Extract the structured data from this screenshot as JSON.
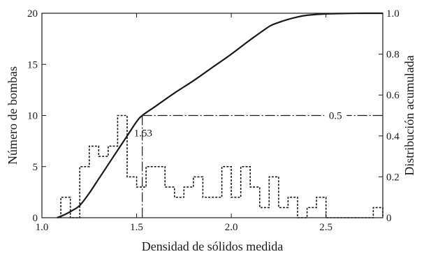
{
  "chart_data": {
    "type": "line",
    "xlabel": "Densidad de sólidos medida",
    "ylabel": "Número de bombas",
    "y2label": "Distribución acumulada",
    "xlim": [
      1.0,
      2.8
    ],
    "ylim": [
      0,
      20
    ],
    "y2lim": [
      0,
      1.0
    ],
    "grid": false,
    "x_ticks": [
      {
        "value": 1.0,
        "label": "1.0"
      },
      {
        "value": 1.5,
        "label": "1.5"
      },
      {
        "value": 2.0,
        "label": "2.0"
      },
      {
        "value": 2.5,
        "label": "2.5"
      }
    ],
    "y_ticks": [
      {
        "value": 0,
        "label": "0"
      },
      {
        "value": 5,
        "label": "5"
      },
      {
        "value": 10,
        "label": "10"
      },
      {
        "value": 15,
        "label": "15"
      },
      {
        "value": 20,
        "label": "20"
      }
    ],
    "y2_ticks": [
      {
        "value": 0,
        "label": "0"
      },
      {
        "value": 0.2,
        "label": "0.2"
      },
      {
        "value": 0.4,
        "label": "0.4"
      },
      {
        "value": 0.6,
        "label": "0.6"
      },
      {
        "value": 0.8,
        "label": "0.8"
      },
      {
        "value": 1.0,
        "label": "1.0"
      }
    ],
    "histogram": {
      "bin_width": 0.05,
      "bins": [
        {
          "x0": 1.1,
          "count": 2
        },
        {
          "x0": 1.15,
          "count": 0
        },
        {
          "x0": 1.2,
          "count": 5
        },
        {
          "x0": 1.25,
          "count": 7
        },
        {
          "x0": 1.3,
          "count": 6
        },
        {
          "x0": 1.35,
          "count": 7
        },
        {
          "x0": 1.4,
          "count": 10
        },
        {
          "x0": 1.45,
          "count": 4
        },
        {
          "x0": 1.5,
          "count": 3
        },
        {
          "x0": 1.55,
          "count": 5
        },
        {
          "x0": 1.6,
          "count": 5
        },
        {
          "x0": 1.65,
          "count": 3
        },
        {
          "x0": 1.7,
          "count": 2
        },
        {
          "x0": 1.75,
          "count": 3
        },
        {
          "x0": 1.8,
          "count": 4
        },
        {
          "x0": 1.85,
          "count": 2
        },
        {
          "x0": 1.9,
          "count": 2
        },
        {
          "x0": 1.95,
          "count": 5
        },
        {
          "x0": 2.0,
          "count": 2
        },
        {
          "x0": 2.05,
          "count": 5
        },
        {
          "x0": 2.1,
          "count": 3
        },
        {
          "x0": 2.15,
          "count": 1
        },
        {
          "x0": 2.2,
          "count": 4
        },
        {
          "x0": 2.25,
          "count": 1
        },
        {
          "x0": 2.3,
          "count": 2
        },
        {
          "x0": 2.35,
          "count": 0
        },
        {
          "x0": 2.4,
          "count": 1
        },
        {
          "x0": 2.45,
          "count": 2
        },
        {
          "x0": 2.5,
          "count": 0
        },
        {
          "x0": 2.55,
          "count": 0
        },
        {
          "x0": 2.6,
          "count": 0
        },
        {
          "x0": 2.65,
          "count": 0
        },
        {
          "x0": 2.7,
          "count": 0
        },
        {
          "x0": 2.75,
          "count": 1
        }
      ]
    },
    "cumulative_curve": {
      "x": [
        1.08,
        1.12,
        1.16,
        1.2,
        1.25,
        1.3,
        1.35,
        1.4,
        1.45,
        1.5,
        1.53,
        1.6,
        1.7,
        1.8,
        1.9,
        2.0,
        2.1,
        2.2,
        2.25,
        2.3,
        2.35,
        2.4,
        2.5,
        2.6,
        2.7,
        2.8
      ],
      "y": [
        0.0,
        0.015,
        0.035,
        0.06,
        0.12,
        0.19,
        0.26,
        0.33,
        0.4,
        0.47,
        0.5,
        0.545,
        0.61,
        0.67,
        0.735,
        0.8,
        0.87,
        0.935,
        0.955,
        0.97,
        0.982,
        0.99,
        0.997,
        0.999,
        1.0,
        1.0
      ]
    },
    "annotations": [
      {
        "text": "1.53",
        "x": 1.53,
        "y2": 0.5
      },
      {
        "text": "0.5",
        "x": 1.53,
        "y2": 0.5
      }
    ]
  }
}
